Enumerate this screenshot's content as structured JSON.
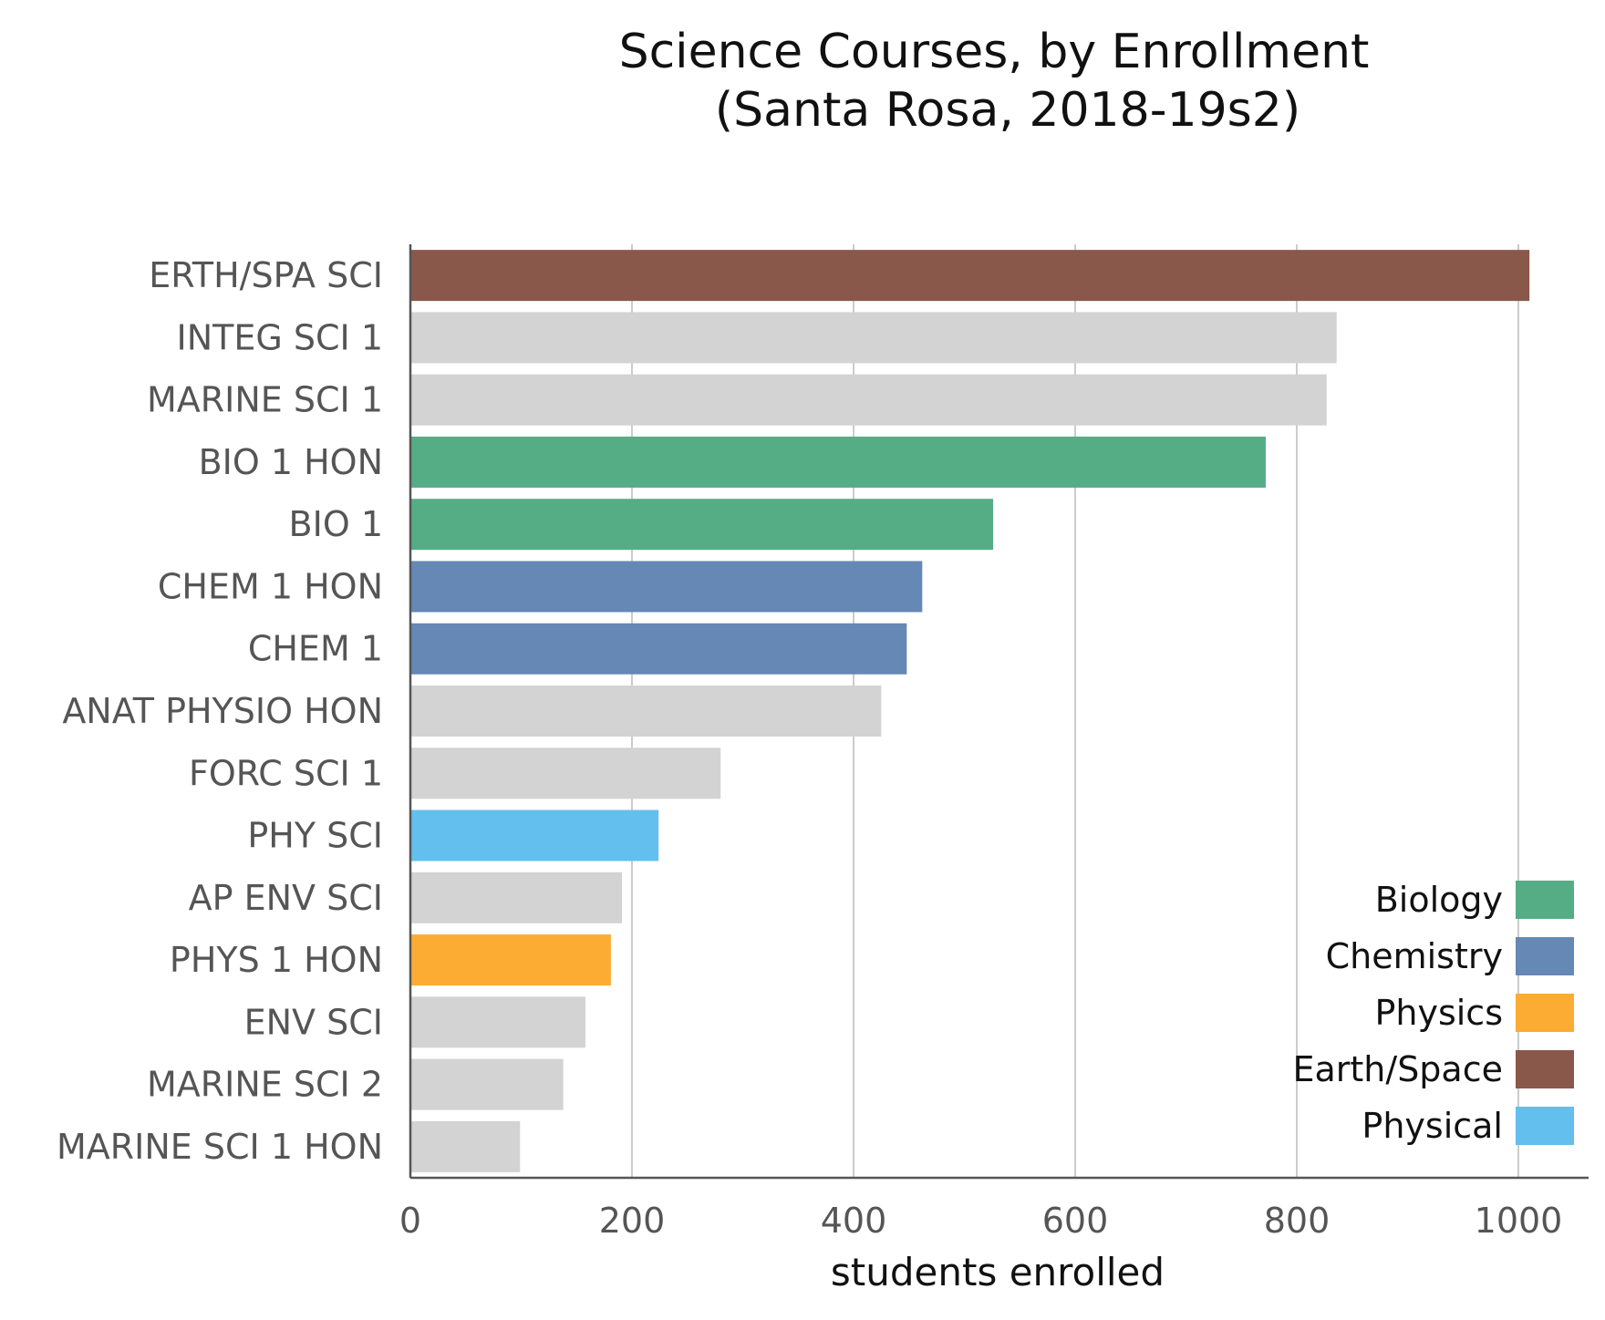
{
  "chart_data": {
    "type": "bar",
    "orientation": "horizontal",
    "title_lines": [
      "Science Courses, by Enrollment",
      "(Santa Rosa, 2018-19s2)"
    ],
    "xlabel": "students enrolled",
    "ylabel": "",
    "xlim": [
      0,
      1040
    ],
    "xticks": [
      0,
      200,
      400,
      600,
      800,
      1000
    ],
    "grid": "vertical",
    "legend_position": "lower-right",
    "colors": {
      "Biology": "#55ad86",
      "Chemistry": "#6588b5",
      "Physics": "#fcac33",
      "Earth/Space": "#8a574b",
      "Physical": "#63bfee",
      "Other": "#d3d3d3"
    },
    "legend": [
      "Biology",
      "Chemistry",
      "Physics",
      "Earth/Space",
      "Physical"
    ],
    "categories": [
      "ERTH/SPA SCI",
      "INTEG SCI 1",
      "MARINE SCI 1",
      "BIO 1 HON",
      "BIO 1",
      "CHEM 1 HON",
      "CHEM 1",
      "ANAT PHYSIO HON",
      "FORC SCI 1",
      "PHY SCI",
      "AP ENV SCI",
      "PHYS 1 HON",
      "ENV SCI",
      "MARINE SCI 2",
      "MARINE SCI 1 HON"
    ],
    "values": [
      1010,
      836,
      827,
      772,
      526,
      462,
      448,
      425,
      280,
      224,
      191,
      181,
      158,
      138,
      99
    ],
    "groups": [
      "Earth/Space",
      "Other",
      "Other",
      "Biology",
      "Biology",
      "Chemistry",
      "Chemistry",
      "Other",
      "Other",
      "Physical",
      "Other",
      "Physics",
      "Other",
      "Other",
      "Other"
    ]
  }
}
